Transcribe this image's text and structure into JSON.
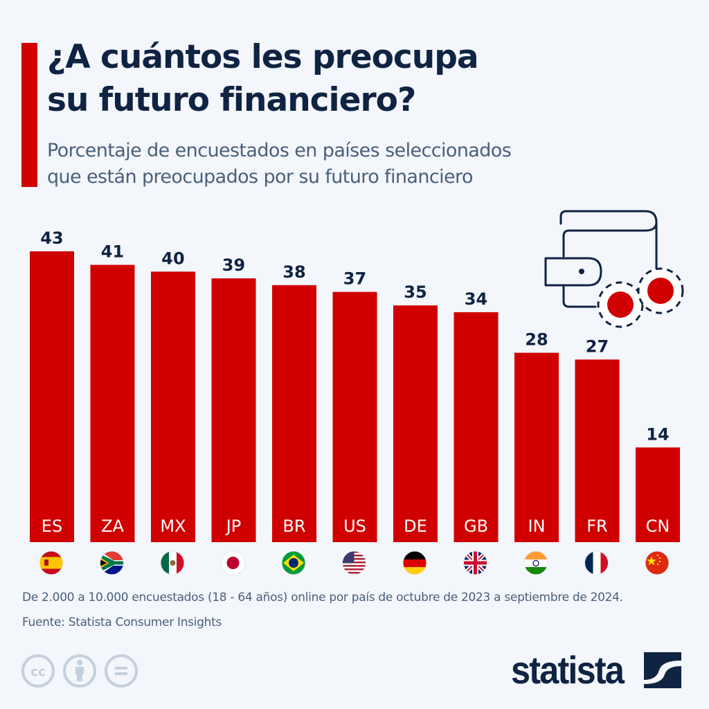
{
  "header": {
    "title_line1": "¿A cuántos les preocupa",
    "title_line2": "su futuro financiero?",
    "subtitle_line1": "Porcentaje de encuestados en países seleccionados",
    "subtitle_line2": "que están preocupados por su futuro financiero"
  },
  "colors": {
    "bar": "#d10000",
    "accent": "#d10000",
    "text_dark": "#0f2342",
    "text_muted": "#4a5f7a",
    "background": "#f3f6fa"
  },
  "chart_data": {
    "type": "bar",
    "title": "¿A cuántos les preocupa su futuro financiero?",
    "subtitle": "Porcentaje de encuestados en países seleccionados que están preocupados por su futuro financiero",
    "xlabel": "",
    "ylabel": "",
    "unit": "%",
    "ylim": [
      0,
      43
    ],
    "grid": false,
    "categories": [
      "ES",
      "ZA",
      "MX",
      "JP",
      "BR",
      "US",
      "DE",
      "GB",
      "IN",
      "FR",
      "CN"
    ],
    "values": [
      43,
      41,
      40,
      39,
      38,
      37,
      35,
      34,
      28,
      27,
      14
    ],
    "flags": [
      "spain-flag-icon",
      "south-africa-flag-icon",
      "mexico-flag-icon",
      "japan-flag-icon",
      "brazil-flag-icon",
      "usa-flag-icon",
      "germany-flag-icon",
      "uk-flag-icon",
      "india-flag-icon",
      "france-flag-icon",
      "china-flag-icon"
    ]
  },
  "decor": {
    "illustration": "wallet-coins-icon"
  },
  "footer": {
    "note": "De 2.000 a 10.000 encuestados (18 - 64 años) online por país de octubre de 2023 a septiembre de 2024.",
    "source": "Fuente: Statista Consumer Insights",
    "license_icons": [
      "cc-icon",
      "attribution-icon",
      "no-derivatives-icon"
    ],
    "brand": "statista"
  }
}
